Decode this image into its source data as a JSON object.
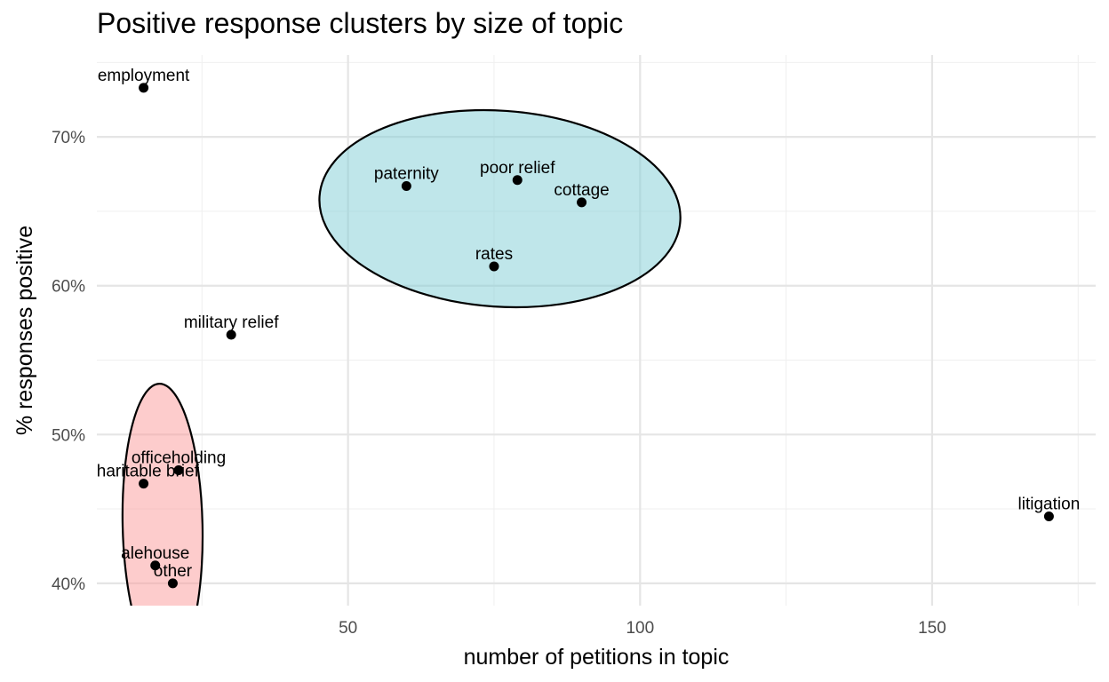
{
  "chart_data": {
    "type": "scatter",
    "title": "Positive response clusters by size of topic",
    "xlabel": "number of petitions in topic",
    "ylabel": "% responses positive",
    "xlim": [
      7,
      178
    ],
    "ylim": [
      38.5,
      75.5
    ],
    "x_ticks": [
      50,
      100,
      150
    ],
    "x_tick_labels": [
      "50",
      "100",
      "150"
    ],
    "x_minor_ticks": [
      25,
      75,
      125,
      175
    ],
    "y_ticks": [
      40,
      50,
      60,
      70
    ],
    "y_tick_labels": [
      "40%",
      "50%",
      "60%",
      "70%"
    ],
    "y_minor_ticks": [
      45,
      55,
      65,
      75
    ],
    "grid": true,
    "legend": "none",
    "points": [
      {
        "label": "employment",
        "x": 15,
        "y": 73.3
      },
      {
        "label": "paternity",
        "x": 60,
        "y": 66.7
      },
      {
        "label": "poor relief",
        "x": 79,
        "y": 67.1
      },
      {
        "label": "cottage",
        "x": 90,
        "y": 65.6
      },
      {
        "label": "rates",
        "x": 75,
        "y": 61.3
      },
      {
        "label": "military relief",
        "x": 30,
        "y": 56.7
      },
      {
        "label": "officeholding",
        "x": 21,
        "y": 47.6
      },
      {
        "label": "charitable brief",
        "x": 15,
        "y": 46.7
      },
      {
        "label": "alehouse",
        "x": 17,
        "y": 41.2
      },
      {
        "label": "other",
        "x": 20,
        "y": 40
      },
      {
        "label": "litigation",
        "x": 170,
        "y": 44.5
      }
    ],
    "clusters": [
      {
        "fill": "#7fcdd6",
        "members": [
          "paternity",
          "poor relief",
          "cottage",
          "rates"
        ]
      },
      {
        "fill": "#fb9a99",
        "members": [
          "officeholding",
          "charitable brief",
          "alehouse",
          "other"
        ]
      }
    ],
    "colors": {
      "point": "#000000",
      "cluster_outline": "#000000",
      "grid_major": "#e5e5e5",
      "grid_minor": "#f0f0f0"
    }
  }
}
